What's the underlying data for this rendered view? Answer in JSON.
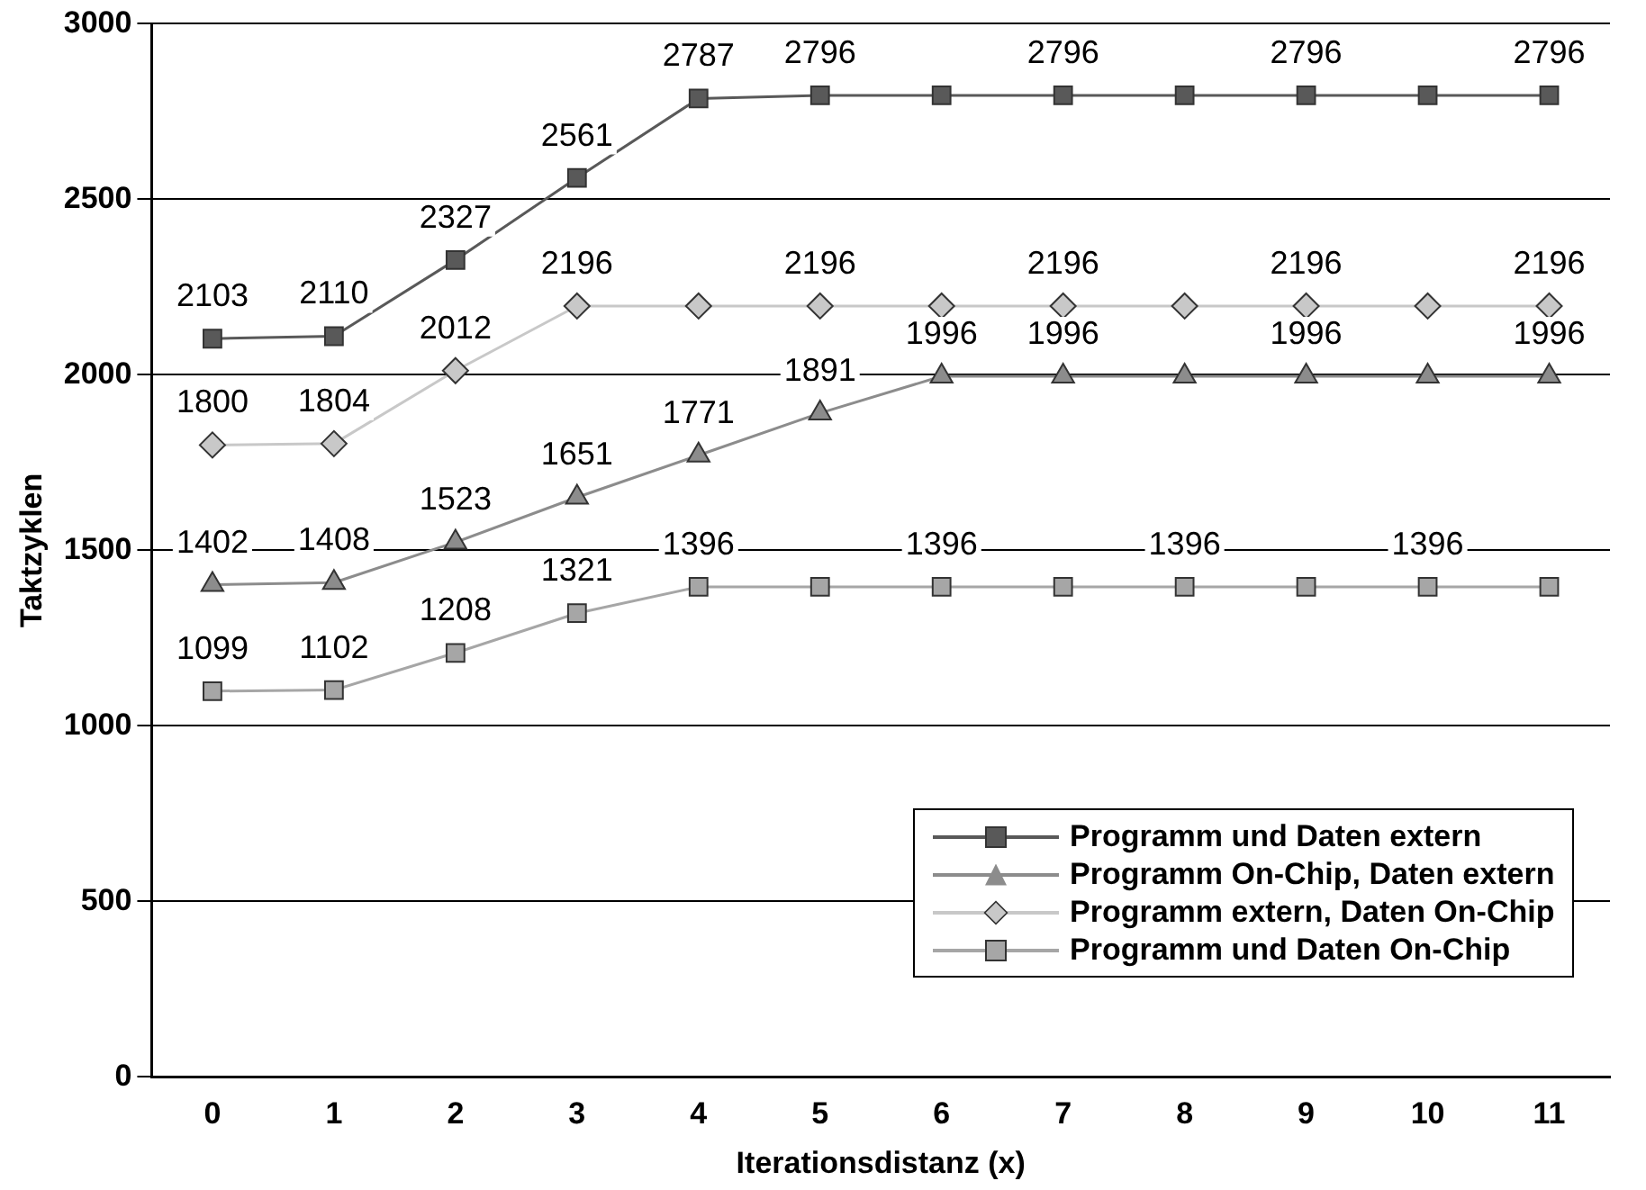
{
  "chart_data": {
    "type": "line",
    "xlabel": "Iterationsdistanz (x)",
    "ylabel": "Taktzyklen",
    "categories": [
      "0",
      "1",
      "2",
      "3",
      "4",
      "5",
      "6",
      "7",
      "8",
      "9",
      "10",
      "11"
    ],
    "ylim": [
      0,
      3000
    ],
    "yticks": [
      0,
      500,
      1000,
      1500,
      2000,
      2500,
      3000
    ],
    "grid": "y",
    "legend": "bottom right",
    "series": [
      {
        "name": "Programm und Daten extern",
        "color": "#595959",
        "marker": "square",
        "values": [
          2103,
          2110,
          2327,
          2561,
          2787,
          2796,
          2796,
          2796,
          2796,
          2796,
          2796,
          2796
        ],
        "value_labels": [
          "2103",
          "2110",
          "2327",
          "2561",
          "2787",
          "2796",
          null,
          "2796",
          null,
          "2796",
          null,
          "2796"
        ]
      },
      {
        "name": "Programm On-Chip, Daten extern",
        "color": "#8c8c8c",
        "marker": "triangle",
        "values": [
          1402,
          1408,
          1523,
          1651,
          1771,
          1891,
          1996,
          1996,
          1996,
          1996,
          1996,
          1996
        ],
        "value_labels": [
          "1402",
          "1408",
          "1523",
          "1651",
          "1771",
          "1891",
          "1996",
          "1996",
          null,
          "1996",
          null,
          "1996"
        ]
      },
      {
        "name": "Programm extern, Daten On-Chip",
        "color": "#c8c8c8",
        "marker": "diamond",
        "values": [
          1800,
          1804,
          2012,
          2196,
          2196,
          2196,
          2196,
          2196,
          2196,
          2196,
          2196,
          2196
        ],
        "value_labels": [
          "1800",
          "1804",
          "2012",
          "2196",
          null,
          "2196",
          null,
          "2196",
          null,
          "2196",
          null,
          "2196"
        ]
      },
      {
        "name": "Programm und Daten On-Chip",
        "color": "#a6a6a6",
        "marker": "square",
        "values": [
          1099,
          1102,
          1208,
          1321,
          1396,
          1396,
          1396,
          1396,
          1396,
          1396,
          1396,
          1396
        ],
        "value_labels": [
          "1099",
          "1102",
          "1208",
          "1321",
          "1396",
          null,
          "1396",
          null,
          "1396",
          null,
          "1396",
          null
        ]
      }
    ]
  }
}
